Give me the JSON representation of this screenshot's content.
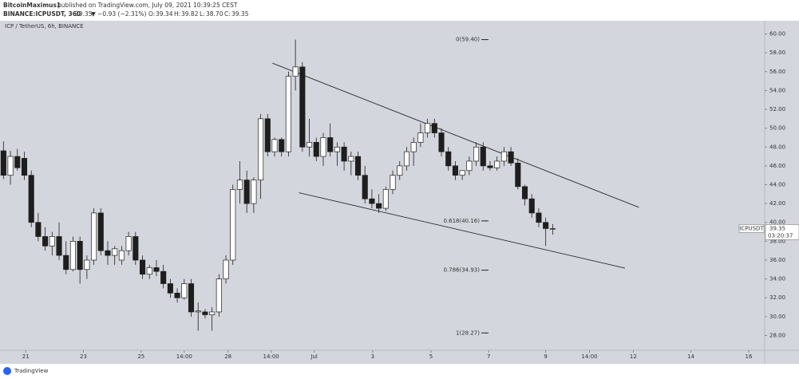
{
  "header": {
    "author": "BitcoinMaximus1",
    "published": "published on TradingView.com, July 09, 2021 10:39:25 CEST",
    "symbol": "BINANCE:ICPUSDT, 360",
    "last": "39.35",
    "change": "▼ −0.93 (−2.31%)",
    "o_label": "O:",
    "o": "39.34",
    "h_label": "H:",
    "h": "39.82",
    "l_label": "L:",
    "l": "38.70",
    "c_label": "C:",
    "c": "39.35"
  },
  "footer": {
    "brand": "TradingView"
  },
  "chart_data": {
    "type": "candlestick",
    "subtitle": "ICP / TetherUS, 6h, BINANCE",
    "open": [
      47.6,
      45.0,
      47.0,
      46.8,
      45.0,
      40.0,
      38.5,
      37.5,
      38.5,
      36.5,
      35.0,
      38.0,
      35.0,
      36.0,
      41.0,
      37.0,
      36.5,
      36.0,
      37.0,
      38.5,
      36.0,
      34.5,
      35.2,
      34.8,
      33.5,
      32.5,
      32.0,
      33.5,
      30.5,
      30.5,
      30.2,
      30.5,
      34.0,
      36.0,
      43.5,
      44.5,
      42.0,
      44.5,
      51.0,
      47.5,
      48.8,
      47.5,
      55.5,
      56.5,
      48.0,
      48.5,
      47.0,
      49.0,
      47.5,
      48.0,
      46.5,
      47.0,
      45.0,
      42.5,
      42.0,
      41.5,
      43.5,
      45.0,
      46.0,
      47.5,
      48.5,
      49.5,
      50.5,
      49.5,
      47.5,
      46.0,
      45.0,
      45.5,
      46.5,
      48.0,
      46.0,
      45.8,
      46.5,
      47.5,
      46.3,
      43.8,
      42.5,
      41.0,
      40.0,
      39.34
    ],
    "high": [
      48.6,
      47.6,
      47.8,
      47.5,
      45.5,
      41.0,
      39.5,
      39.0,
      40.0,
      38.0,
      38.5,
      38.5,
      36.5,
      41.5,
      41.5,
      38.0,
      37.5,
      37.5,
      39.0,
      39.0,
      36.5,
      35.5,
      36.0,
      35.5,
      34.0,
      33.0,
      34.0,
      34.0,
      31.5,
      30.8,
      31.0,
      34.5,
      36.5,
      44.0,
      46.5,
      45.5,
      44.8,
      51.5,
      51.5,
      49.0,
      49.0,
      56.0,
      59.4,
      57.0,
      51.0,
      49.0,
      49.5,
      50.5,
      48.5,
      48.5,
      47.5,
      47.5,
      46.0,
      43.5,
      43.0,
      43.8,
      45.5,
      46.5,
      48.0,
      49.0,
      50.5,
      51.0,
      51.0,
      50.0,
      48.0,
      46.5,
      45.5,
      47.0,
      48.5,
      48.5,
      46.5,
      47.0,
      48.0,
      48.0,
      46.8,
      44.0,
      43.0,
      41.5,
      40.5,
      39.82
    ],
    "low": [
      44.6,
      44.0,
      45.5,
      44.5,
      39.5,
      38.0,
      37.0,
      36.5,
      36.0,
      34.5,
      34.8,
      33.5,
      34.0,
      35.5,
      36.5,
      35.5,
      35.5,
      35.5,
      36.5,
      35.5,
      34.0,
      34.0,
      34.3,
      33.0,
      32.0,
      31.5,
      31.8,
      30.0,
      28.5,
      29.8,
      28.5,
      30.0,
      33.5,
      35.5,
      42.0,
      41.0,
      41.0,
      42.5,
      47.0,
      47.0,
      47.0,
      47.0,
      54.0,
      47.5,
      47.0,
      46.5,
      46.0,
      47.0,
      46.0,
      45.5,
      45.0,
      44.5,
      42.0,
      41.5,
      41.0,
      41.2,
      43.0,
      44.5,
      45.5,
      46.0,
      48.0,
      49.0,
      49.0,
      47.0,
      45.5,
      44.5,
      44.5,
      45.0,
      46.0,
      45.5,
      45.5,
      45.5,
      46.0,
      46.0,
      43.5,
      41.8,
      40.5,
      39.5,
      37.5,
      38.7
    ],
    "close": [
      45.0,
      47.0,
      45.8,
      45.0,
      40.0,
      38.5,
      37.5,
      38.5,
      36.5,
      35.0,
      38.0,
      35.0,
      36.0,
      41.0,
      37.0,
      36.5,
      37.2,
      37.0,
      38.5,
      36.0,
      34.5,
      35.2,
      34.8,
      33.5,
      32.5,
      32.0,
      33.5,
      30.5,
      30.6,
      30.2,
      30.5,
      34.0,
      36.0,
      43.5,
      44.5,
      42.0,
      44.5,
      51.0,
      47.5,
      48.8,
      47.5,
      55.5,
      56.5,
      48.0,
      48.5,
      47.0,
      49.0,
      47.5,
      48.0,
      46.5,
      47.0,
      45.0,
      42.5,
      42.0,
      41.5,
      43.5,
      45.0,
      46.0,
      47.5,
      48.5,
      49.5,
      50.5,
      49.5,
      47.5,
      46.0,
      45.0,
      45.5,
      46.5,
      48.0,
      46.0,
      45.8,
      46.5,
      47.5,
      46.3,
      43.8,
      42.5,
      41.0,
      40.0,
      39.35,
      39.35
    ],
    "xlim": [
      -0.5,
      109.5
    ],
    "xticks": [
      {
        "value": 3.2,
        "label": "21"
      },
      {
        "value": 11.5,
        "label": "23"
      },
      {
        "value": 19.8,
        "label": "25"
      },
      {
        "value": 26,
        "label": "14:00"
      },
      {
        "value": 32.3,
        "label": "28"
      },
      {
        "value": 38.5,
        "label": "14:00"
      },
      {
        "value": 44.7,
        "label": "Jul"
      },
      {
        "value": 53.1,
        "label": "3"
      },
      {
        "value": 61.5,
        "label": "5"
      },
      {
        "value": 69.8,
        "label": "7"
      },
      {
        "value": 78,
        "label": "9"
      },
      {
        "value": 84.3,
        "label": "14:00"
      },
      {
        "value": 90.6,
        "label": "12"
      },
      {
        "value": 98.9,
        "label": "14"
      },
      {
        "value": 107.2,
        "label": "16"
      }
    ],
    "ylim": [
      26.6,
      61.4
    ],
    "yticks": [
      {
        "value": 28,
        "label": "28.00"
      },
      {
        "value": 30,
        "label": "30.00"
      },
      {
        "value": 32,
        "label": "32.00"
      },
      {
        "value": 34,
        "label": "34.00"
      },
      {
        "value": 36,
        "label": "36.00"
      },
      {
        "value": 38,
        "label": "38.00"
      },
      {
        "value": 40,
        "label": "40.00"
      },
      {
        "value": 42,
        "label": "42.00"
      },
      {
        "value": 44,
        "label": "44.00"
      },
      {
        "value": 46,
        "label": "46.00"
      },
      {
        "value": 48,
        "label": "48.00"
      },
      {
        "value": 50,
        "label": "50.00"
      },
      {
        "value": 52,
        "label": "52.00"
      },
      {
        "value": 54,
        "label": "54.00"
      },
      {
        "value": 56,
        "label": "56.00"
      },
      {
        "value": 58,
        "label": "58.00"
      },
      {
        "value": 60,
        "label": "60.00"
      }
    ],
    "up_color": "#ffffff",
    "down_color": "#1e1e1e",
    "background": "#d4d6de",
    "fib_levels": [
      {
        "label": "0(59.40)",
        "value": 59.4
      },
      {
        "label": "0.618(40.16)",
        "value": 40.16
      },
      {
        "label": "0.786(34.93)",
        "value": 34.93
      },
      {
        "label": "1(28.27)",
        "value": 28.27
      }
    ],
    "trendlines": [
      {
        "x": [
          38.7,
          91.4
        ],
        "y": [
          56.9,
          41.6
        ]
      },
      {
        "x": [
          42.5,
          89.4
        ],
        "y": [
          43.15,
          35.15
        ]
      }
    ],
    "price_label": {
      "symbol": "ICPUSDT",
      "value": 39.35,
      "countdown": "03:20:37"
    }
  }
}
